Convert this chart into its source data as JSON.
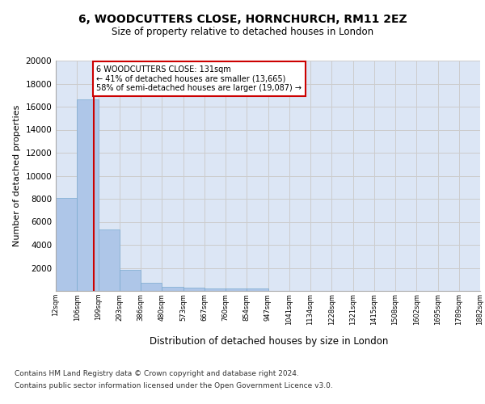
{
  "title": "6, WOODCUTTERS CLOSE, HORNCHURCH, RM11 2EZ",
  "subtitle": "Size of property relative to detached houses in London",
  "xlabel": "Distribution of detached houses by size in London",
  "ylabel": "Number of detached properties",
  "footer_line1": "Contains HM Land Registry data © Crown copyright and database right 2024.",
  "footer_line2": "Contains public sector information licensed under the Open Government Licence v3.0.",
  "bar_values": [
    8100,
    16600,
    5350,
    1850,
    700,
    375,
    290,
    225,
    195,
    190,
    0,
    0,
    0,
    0,
    0,
    0,
    0,
    0,
    0,
    0
  ],
  "categories": [
    "12sqm",
    "106sqm",
    "199sqm",
    "293sqm",
    "386sqm",
    "480sqm",
    "573sqm",
    "667sqm",
    "760sqm",
    "854sqm",
    "947sqm",
    "1041sqm",
    "1134sqm",
    "1228sqm",
    "1321sqm",
    "1415sqm",
    "1508sqm",
    "1602sqm",
    "1695sqm",
    "1789sqm",
    "1882sqm"
  ],
  "bar_color": "#aec6e8",
  "bar_edgecolor": "#7aaad0",
  "grid_color": "#cccccc",
  "bg_color": "#dce6f5",
  "red_line_x": 1.3,
  "annotation_text": "6 WOODCUTTERS CLOSE: 131sqm\n← 41% of detached houses are smaller (13,665)\n58% of semi-detached houses are larger (19,087) →",
  "annotation_box_color": "#cc0000",
  "ylim": [
    0,
    20000
  ],
  "yticks": [
    0,
    2000,
    4000,
    6000,
    8000,
    10000,
    12000,
    14000,
    16000,
    18000,
    20000
  ]
}
